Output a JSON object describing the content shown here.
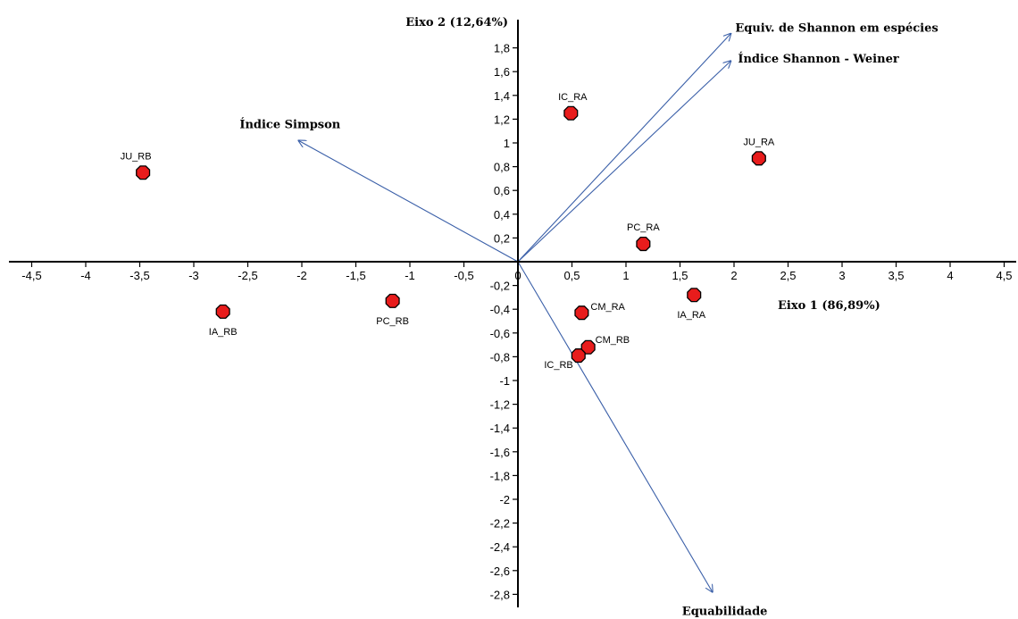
{
  "chart_data": {
    "type": "scatter",
    "title": "",
    "xlabel": "Eixo 1 (86,89%)",
    "ylabel": "Eixo 2 (12,64%)",
    "xlim": [
      -4.7,
      4.6
    ],
    "ylim": [
      -2.8,
      2.0
    ],
    "x_ticks": [
      -4.5,
      -4,
      -3.5,
      -3,
      -2.5,
      -2,
      -1.5,
      -1,
      -0.5,
      0,
      0.5,
      1,
      1.5,
      2,
      2.5,
      3,
      3.5,
      4,
      4.5
    ],
    "x_tick_labels": [
      "-4,5",
      "-4",
      "-3,5",
      "-3",
      "-2,5",
      "-2",
      "-1,5",
      "-1",
      "-0,5",
      "0",
      "0,5",
      "1",
      "1,5",
      "2",
      "2,5",
      "3",
      "3,5",
      "4",
      "4,5"
    ],
    "y_ticks": [
      1.8,
      1.6,
      1.4,
      1.2,
      1,
      0.8,
      0.6,
      0.4,
      0.2,
      0,
      -0.2,
      -0.4,
      -0.6,
      -0.8,
      -1,
      -1.2,
      -1.4,
      -1.6,
      -1.8,
      -2,
      -2.2,
      -2.4,
      -2.6,
      -2.8
    ],
    "y_tick_labels": [
      "1,8",
      "1,6",
      "1,4",
      "1,2",
      "1",
      "0,8",
      "0,6",
      "0,4",
      "0,2",
      "0",
      "-0,2",
      "-0,4",
      "-0,6",
      "-0,8",
      "-1",
      "-1,2",
      "-1,4",
      "-1,6",
      "-1,8",
      "-2",
      "-2,2",
      "-2,4",
      "-2,6",
      "-2,8"
    ],
    "grid": false,
    "point_color": "#e81c1c",
    "vector_color": "#3a5fa8",
    "points": [
      {
        "label": "JU_RB",
        "x": -3.47,
        "y": 0.75
      },
      {
        "label": "IA_RB",
        "x": -2.73,
        "y": -0.42
      },
      {
        "label": "PC_RB",
        "x": -1.16,
        "y": -0.33
      },
      {
        "label": "IC_RA",
        "x": 0.49,
        "y": 1.25
      },
      {
        "label": "CM_RA",
        "x": 0.59,
        "y": -0.43
      },
      {
        "label": "CM_RB",
        "x": 0.65,
        "y": -0.72
      },
      {
        "label": "IC_RB",
        "x": 0.56,
        "y": -0.79
      },
      {
        "label": "PC_RA",
        "x": 1.16,
        "y": 0.15
      },
      {
        "label": "IA_RA",
        "x": 1.63,
        "y": -0.28
      },
      {
        "label": "JU_RA",
        "x": 2.23,
        "y": 0.87
      }
    ],
    "vectors": [
      {
        "label": "Equiv. de Shannon em espécies",
        "x": 1.97,
        "y": 1.92
      },
      {
        "label": "Índice Shannon - Weiner",
        "x": 1.97,
        "y": 1.69
      },
      {
        "label": "Índice Simpson",
        "x": -2.03,
        "y": 1.02
      },
      {
        "label": "Equabilidade",
        "x": 1.8,
        "y": -2.78
      }
    ]
  }
}
